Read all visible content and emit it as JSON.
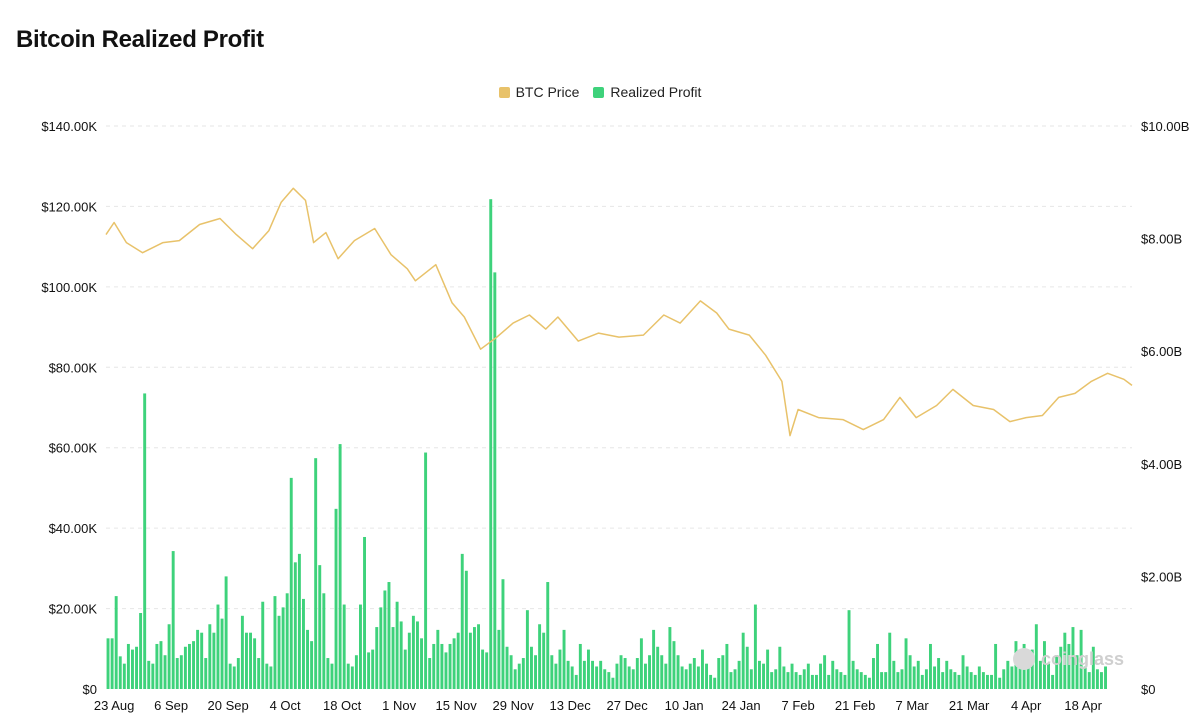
{
  "header": {
    "title": "Bitcoin Realized Profit"
  },
  "watermark": {
    "text": "coinglass"
  },
  "colors": {
    "price": "#E8C26A",
    "profit": "#3ED27B",
    "grid": "#E6E6E6"
  },
  "chart_data": {
    "type": "bar",
    "title": "Bitcoin Realized Profit",
    "legend": {
      "placement": "top-center"
    },
    "grid": true,
    "x_range": [
      "2025-08-21",
      "2026-04-30"
    ],
    "x_ticks": [
      {
        "date": "2025-08-23",
        "label": "23 Aug"
      },
      {
        "date": "2025-09-06",
        "label": "6 Sep"
      },
      {
        "date": "2025-09-20",
        "label": "20 Sep"
      },
      {
        "date": "2025-10-04",
        "label": "4 Oct"
      },
      {
        "date": "2025-10-18",
        "label": "18 Oct"
      },
      {
        "date": "2025-11-01",
        "label": "1 Nov"
      },
      {
        "date": "2025-11-15",
        "label": "15 Nov"
      },
      {
        "date": "2025-11-29",
        "label": "29 Nov"
      },
      {
        "date": "2025-12-13",
        "label": "13 Dec"
      },
      {
        "date": "2025-12-27",
        "label": "27 Dec"
      },
      {
        "date": "2026-01-10",
        "label": "10 Jan"
      },
      {
        "date": "2026-01-24",
        "label": "24 Jan"
      },
      {
        "date": "2026-02-07",
        "label": "7 Feb"
      },
      {
        "date": "2026-02-21",
        "label": "21 Feb"
      },
      {
        "date": "2026-03-07",
        "label": "7 Mar"
      },
      {
        "date": "2026-03-21",
        "label": "21 Mar"
      },
      {
        "date": "2026-04-04",
        "label": "4 Apr"
      },
      {
        "date": "2026-04-18",
        "label": "18 Apr"
      }
    ],
    "y_left": {
      "range": [
        0,
        140000
      ],
      "ticks": [
        {
          "value": 0,
          "label": "$0"
        },
        {
          "value": 20000,
          "label": "$20.00K"
        },
        {
          "value": 40000,
          "label": "$40.00K"
        },
        {
          "value": 60000,
          "label": "$60.00K"
        },
        {
          "value": 80000,
          "label": "$80.00K"
        },
        {
          "value": 100000,
          "label": "$100.00K"
        },
        {
          "value": 120000,
          "label": "$120.00K"
        },
        {
          "value": 140000,
          "label": "$140.00K"
        }
      ]
    },
    "y_right": {
      "range": [
        0,
        10000000000
      ],
      "ticks": [
        {
          "value": 0,
          "label": "$0"
        },
        {
          "value": 2000000000,
          "label": "$2.00B"
        },
        {
          "value": 4000000000,
          "label": "$4.00B"
        },
        {
          "value": 6000000000,
          "label": "$6.00B"
        },
        {
          "value": 8000000000,
          "label": "$8.00B"
        },
        {
          "value": 10000000000,
          "label": "$10.00B"
        }
      ]
    },
    "series": [
      {
        "name": "BTC Price",
        "type": "line",
        "axis": "left",
        "points": [
          [
            "2025-08-21",
            113000
          ],
          [
            "2025-08-23",
            116000
          ],
          [
            "2025-08-26",
            111000
          ],
          [
            "2025-08-30",
            108500
          ],
          [
            "2025-09-04",
            111000
          ],
          [
            "2025-09-08",
            111500
          ],
          [
            "2025-09-13",
            115500
          ],
          [
            "2025-09-18",
            117000
          ],
          [
            "2025-09-22",
            113000
          ],
          [
            "2025-09-26",
            109500
          ],
          [
            "2025-09-30",
            114000
          ],
          [
            "2025-10-03",
            121000
          ],
          [
            "2025-10-06",
            124500
          ],
          [
            "2025-10-09",
            121500
          ],
          [
            "2025-10-11",
            111000
          ],
          [
            "2025-10-14",
            113500
          ],
          [
            "2025-10-17",
            107000
          ],
          [
            "2025-10-21",
            111500
          ],
          [
            "2025-10-26",
            114500
          ],
          [
            "2025-10-30",
            108000
          ],
          [
            "2025-11-03",
            104500
          ],
          [
            "2025-11-05",
            101500
          ],
          [
            "2025-11-10",
            105500
          ],
          [
            "2025-11-14",
            96000
          ],
          [
            "2025-11-17",
            92500
          ],
          [
            "2025-11-21",
            84500
          ],
          [
            "2025-11-25",
            87500
          ],
          [
            "2025-11-29",
            91000
          ],
          [
            "2025-12-03",
            93000
          ],
          [
            "2025-12-07",
            89500
          ],
          [
            "2025-12-10",
            92500
          ],
          [
            "2025-12-15",
            86500
          ],
          [
            "2025-12-20",
            88500
          ],
          [
            "2025-12-25",
            87500
          ],
          [
            "2025-12-31",
            88000
          ],
          [
            "2026-01-05",
            93000
          ],
          [
            "2026-01-09",
            91000
          ],
          [
            "2026-01-14",
            96500
          ],
          [
            "2026-01-18",
            93500
          ],
          [
            "2026-01-21",
            89500
          ],
          [
            "2026-01-26",
            88000
          ],
          [
            "2026-01-30",
            83000
          ],
          [
            "2026-02-03",
            76500
          ],
          [
            "2026-02-05",
            63000
          ],
          [
            "2026-02-07",
            69500
          ],
          [
            "2026-02-12",
            67500
          ],
          [
            "2026-02-18",
            67000
          ],
          [
            "2026-02-23",
            64500
          ],
          [
            "2026-02-28",
            67000
          ],
          [
            "2026-03-04",
            72500
          ],
          [
            "2026-03-08",
            67500
          ],
          [
            "2026-03-13",
            70500
          ],
          [
            "2026-03-17",
            74500
          ],
          [
            "2026-03-22",
            70500
          ],
          [
            "2026-03-27",
            69500
          ],
          [
            "2026-03-31",
            66500
          ],
          [
            "2026-04-04",
            67500
          ],
          [
            "2026-04-08",
            68000
          ],
          [
            "2026-04-12",
            72500
          ],
          [
            "2026-04-16",
            73500
          ],
          [
            "2026-04-20",
            76500
          ],
          [
            "2026-04-24",
            78500
          ],
          [
            "2026-04-28",
            77000
          ],
          [
            "2026-04-30",
            75500
          ]
        ]
      },
      {
        "name": "Realized Profit",
        "type": "bar",
        "axis": "right",
        "start": "2025-08-21",
        "values": [
          900000000,
          900000000,
          1650000000,
          580000000,
          450000000,
          800000000,
          700000000,
          750000000,
          1350000000,
          5250000000,
          500000000,
          450000000,
          800000000,
          850000000,
          600000000,
          1150000000,
          2450000000,
          550000000,
          600000000,
          750000000,
          800000000,
          850000000,
          1050000000,
          1000000000,
          550000000,
          1150000000,
          1000000000,
          1500000000,
          1250000000,
          2000000000,
          450000000,
          400000000,
          550000000,
          1300000000,
          1000000000,
          1000000000,
          900000000,
          550000000,
          1550000000,
          450000000,
          400000000,
          1650000000,
          1300000000,
          1450000000,
          1700000000,
          3750000000,
          2250000000,
          2400000000,
          1600000000,
          1050000000,
          850000000,
          4100000000,
          2200000000,
          1700000000,
          550000000,
          450000000,
          3200000000,
          4350000000,
          1500000000,
          450000000,
          400000000,
          600000000,
          1500000000,
          2700000000,
          650000000,
          700000000,
          1100000000,
          1450000000,
          1750000000,
          1900000000,
          1100000000,
          1550000000,
          1200000000,
          700000000,
          1000000000,
          1300000000,
          1200000000,
          900000000,
          4200000000,
          550000000,
          800000000,
          1050000000,
          800000000,
          650000000,
          800000000,
          900000000,
          1000000000,
          2400000000,
          2100000000,
          1000000000,
          1100000000,
          1150000000,
          700000000,
          650000000,
          8700000000,
          7400000000,
          1050000000,
          1950000000,
          750000000,
          600000000,
          350000000,
          450000000,
          550000000,
          1400000000,
          750000000,
          600000000,
          1150000000,
          1000000000,
          1900000000,
          600000000,
          450000000,
          700000000,
          1050000000,
          500000000,
          400000000,
          250000000,
          800000000,
          500000000,
          700000000,
          500000000,
          400000000,
          500000000,
          350000000,
          300000000,
          200000000,
          450000000,
          600000000,
          550000000,
          400000000,
          350000000,
          550000000,
          900000000,
          450000000,
          600000000,
          1050000000,
          750000000,
          600000000,
          450000000,
          1100000000,
          850000000,
          600000000,
          400000000,
          350000000,
          450000000,
          550000000,
          400000000,
          700000000,
          450000000,
          250000000,
          200000000,
          550000000,
          600000000,
          800000000,
          300000000,
          350000000,
          500000000,
          1000000000,
          750000000,
          350000000,
          1500000000,
          500000000,
          450000000,
          700000000,
          300000000,
          350000000,
          750000000,
          400000000,
          300000000,
          450000000,
          300000000,
          250000000,
          350000000,
          450000000,
          250000000,
          250000000,
          450000000,
          600000000,
          250000000,
          500000000,
          350000000,
          300000000,
          250000000,
          1400000000,
          500000000,
          350000000,
          300000000,
          250000000,
          200000000,
          550000000,
          800000000,
          300000000,
          300000000,
          1000000000,
          500000000,
          300000000,
          350000000,
          900000000,
          600000000,
          400000000,
          500000000,
          250000000,
          350000000,
          800000000,
          400000000,
          550000000,
          300000000,
          500000000,
          350000000,
          300000000,
          250000000,
          600000000,
          400000000,
          300000000,
          250000000,
          400000000,
          300000000,
          250000000,
          250000000,
          800000000,
          200000000,
          350000000,
          500000000,
          400000000,
          850000000,
          700000000,
          800000000,
          500000000,
          700000000,
          1150000000,
          500000000,
          850000000,
          450000000,
          250000000,
          600000000,
          750000000,
          1000000000,
          800000000,
          1100000000,
          600000000,
          1050000000,
          400000000,
          300000000,
          750000000,
          350000000,
          300000000,
          400000000
        ]
      }
    ]
  }
}
